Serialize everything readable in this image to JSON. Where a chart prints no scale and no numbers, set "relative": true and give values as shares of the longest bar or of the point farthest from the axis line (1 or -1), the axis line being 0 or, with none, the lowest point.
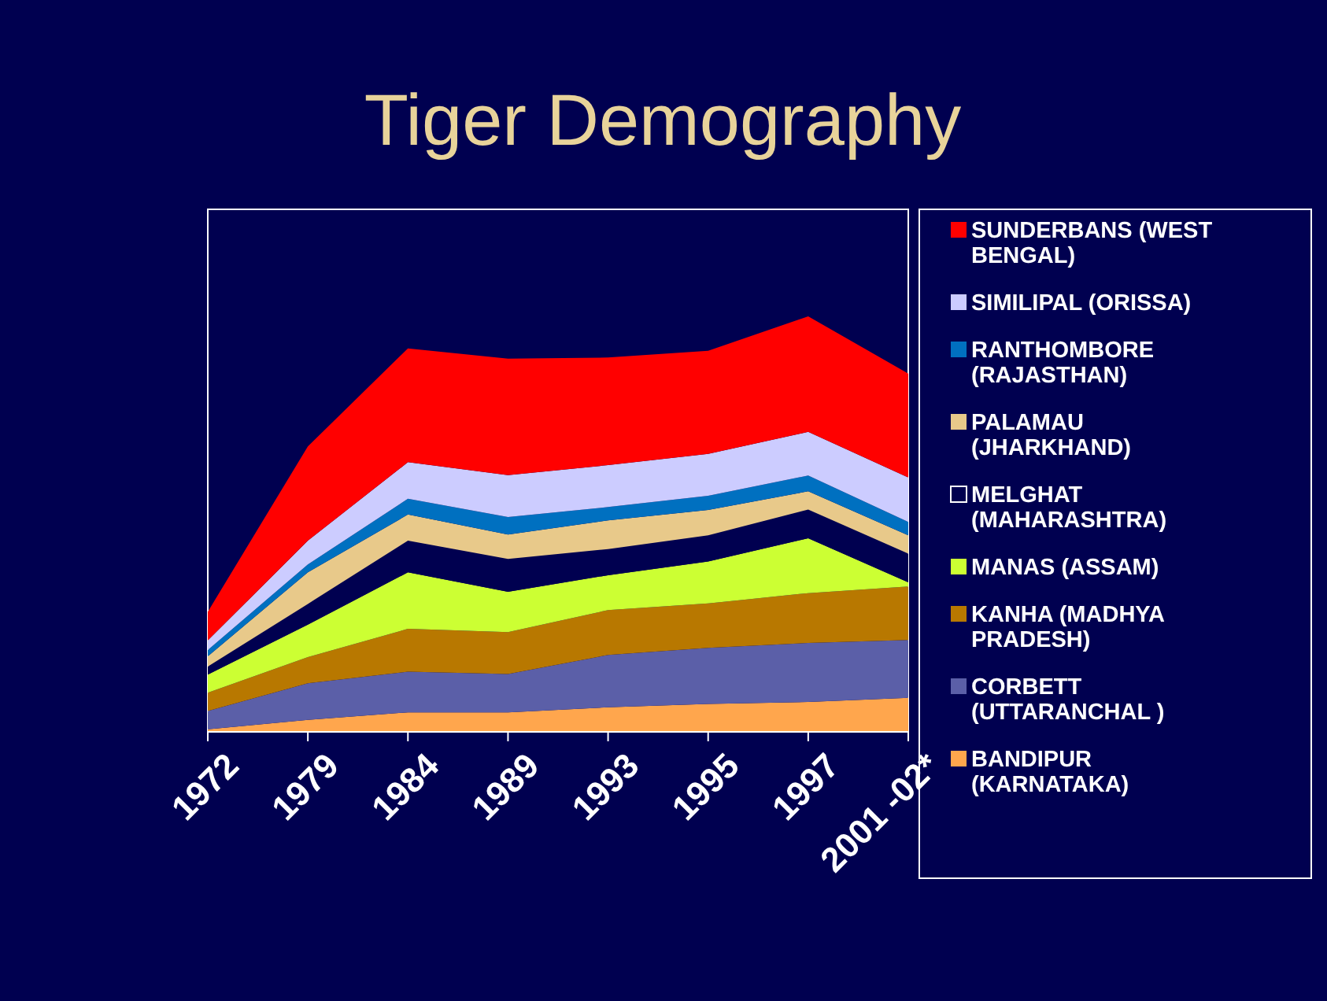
{
  "chart_data": {
    "type": "area",
    "title": "Tiger Demography",
    "relative": true,
    "stacked": true,
    "legend": "right",
    "categories": [
      "1972",
      "1979",
      "1984",
      "1989",
      "1993",
      "1995",
      "1997",
      "2001 -02*"
    ],
    "series": [
      {
        "name": "BANDIPUR (KARNATAKA)",
        "color": "#ffa64d",
        "values": [
          0.006,
          0.029,
          0.047,
          0.047,
          0.059,
          0.067,
          0.072,
          0.082
        ]
      },
      {
        "name": "CORBETT (UTTARANCHAL )",
        "color": "#5b5fa8",
        "values": [
          0.044,
          0.088,
          0.098,
          0.092,
          0.126,
          0.135,
          0.142,
          0.139
        ]
      },
      {
        "name": "KANHA (MADHYA PRADESH)",
        "color": "#b87800",
        "values": [
          0.044,
          0.063,
          0.103,
          0.101,
          0.108,
          0.107,
          0.12,
          0.129
        ]
      },
      {
        "name": "MANAS (ASSAM)",
        "color": "#ccff33",
        "values": [
          0.044,
          0.078,
          0.136,
          0.097,
          0.084,
          0.101,
          0.132,
          0.01
        ]
      },
      {
        "name": "MELGHAT (MAHARASHTRA)",
        "color": "#000050",
        "values": [
          0.019,
          0.05,
          0.076,
          0.079,
          0.063,
          0.063,
          0.069,
          0.069
        ]
      },
      {
        "name": "PALAMAU (JHARKHAND)",
        "color": "#e8c98a",
        "values": [
          0.025,
          0.076,
          0.063,
          0.059,
          0.069,
          0.061,
          0.044,
          0.044
        ]
      },
      {
        "name": "RANTHOMBORE (RAJASTHAN)",
        "color": "#0070c0",
        "values": [
          0.015,
          0.019,
          0.038,
          0.042,
          0.032,
          0.034,
          0.038,
          0.032
        ]
      },
      {
        "name": "SIMILIPAL (ORISSA)",
        "color": "#ccccff",
        "values": [
          0.023,
          0.057,
          0.088,
          0.101,
          0.101,
          0.101,
          0.105,
          0.107
        ]
      },
      {
        "name": "SUNDERBANS (WEST BENGAL)",
        "color": "#ff0000",
        "values": [
          0.069,
          0.227,
          0.274,
          0.28,
          0.259,
          0.248,
          0.278,
          0.25
        ]
      }
    ]
  }
}
